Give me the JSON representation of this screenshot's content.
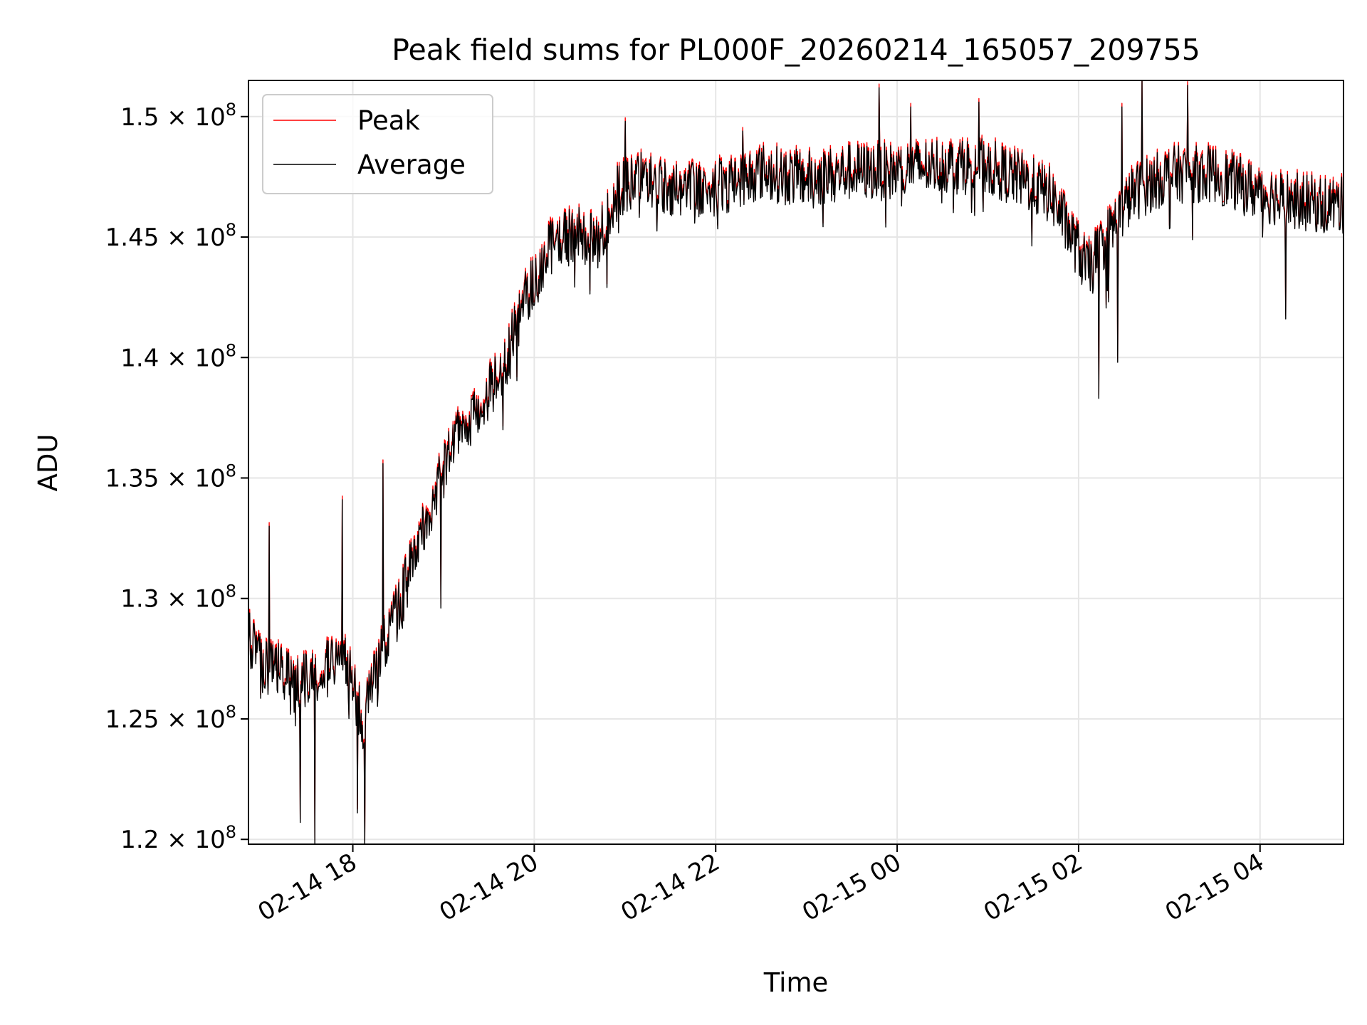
{
  "chart_data": {
    "type": "line",
    "title": "Peak field sums for PL000F_20260214_165057_209755",
    "xlabel": "Time",
    "ylabel": "ADU",
    "x_unit": "hours since 02-14 00:00",
    "xlim": [
      16.85,
      28.92
    ],
    "ylim": [
      119800000,
      151500000
    ],
    "grid": true,
    "legend_location": "upper-left",
    "x_ticks": [
      {
        "value": 18,
        "label": "02-14 18"
      },
      {
        "value": 20,
        "label": "02-14 20"
      },
      {
        "value": 22,
        "label": "02-14 22"
      },
      {
        "value": 24,
        "label": "02-15 00"
      },
      {
        "value": 26,
        "label": "02-15 02"
      },
      {
        "value": 28,
        "label": "02-15 04"
      }
    ],
    "y_ticks": [
      {
        "value": 120000000,
        "label": "1.2",
        "exp": "8"
      },
      {
        "value": 125000000,
        "label": "1.25",
        "exp": "8"
      },
      {
        "value": 130000000,
        "label": "1.3",
        "exp": "8"
      },
      {
        "value": 135000000,
        "label": "1.35",
        "exp": "8"
      },
      {
        "value": 140000000,
        "label": "1.4",
        "exp": "8"
      },
      {
        "value": 145000000,
        "label": "1.45",
        "exp": "8"
      },
      {
        "value": 150000000,
        "label": "1.5",
        "exp": "8"
      }
    ],
    "series": [
      {
        "name": "Peak",
        "color": "#ff0000",
        "offset": 150000
      },
      {
        "name": "Average",
        "color": "#000000",
        "offset": 0
      }
    ],
    "trend_x": [
      16.85,
      17.0,
      17.3,
      17.6,
      17.9,
      18.1,
      18.3,
      18.5,
      18.7,
      18.9,
      19.1,
      19.3,
      19.5,
      19.7,
      19.9,
      20.2,
      20.5,
      20.7,
      20.9,
      21.2,
      21.5,
      22.0,
      22.5,
      23.0,
      23.5,
      24.0,
      24.5,
      25.0,
      25.4,
      25.7,
      25.9,
      26.1,
      26.3,
      26.6,
      27.0,
      27.5,
      28.0,
      28.5,
      28.92
    ],
    "trend_y": [
      128500000,
      127200000,
      126800000,
      126500000,
      128000000,
      124800000,
      127500000,
      129500000,
      132000000,
      134200000,
      136300000,
      137500000,
      138600000,
      140000000,
      142400000,
      144700000,
      145200000,
      144600000,
      146900000,
      147400000,
      147000000,
      147000000,
      147700000,
      147400000,
      147700000,
      147700000,
      148000000,
      147900000,
      147300000,
      146700000,
      145200000,
      143600000,
      144900000,
      146800000,
      147600000,
      147600000,
      146800000,
      146400000,
      146300000
    ],
    "noise_amplitude": 1200000,
    "spikes": [
      {
        "x": 17.08,
        "y": 133000000
      },
      {
        "x": 17.42,
        "y": 120700000
      },
      {
        "x": 17.58,
        "y": 119800000
      },
      {
        "x": 17.88,
        "y": 134100000
      },
      {
        "x": 18.05,
        "y": 121100000
      },
      {
        "x": 18.13,
        "y": 119800000
      },
      {
        "x": 18.33,
        "y": 135600000
      },
      {
        "x": 18.97,
        "y": 129600000
      },
      {
        "x": 21.0,
        "y": 149800000
      },
      {
        "x": 22.3,
        "y": 149400000
      },
      {
        "x": 23.8,
        "y": 151200000
      },
      {
        "x": 24.15,
        "y": 150400000
      },
      {
        "x": 24.9,
        "y": 150600000
      },
      {
        "x": 26.22,
        "y": 138300000
      },
      {
        "x": 26.43,
        "y": 139800000
      },
      {
        "x": 26.48,
        "y": 150400000
      },
      {
        "x": 26.7,
        "y": 151500000
      },
      {
        "x": 27.2,
        "y": 151300000
      },
      {
        "x": 28.28,
        "y": 141600000
      }
    ]
  }
}
